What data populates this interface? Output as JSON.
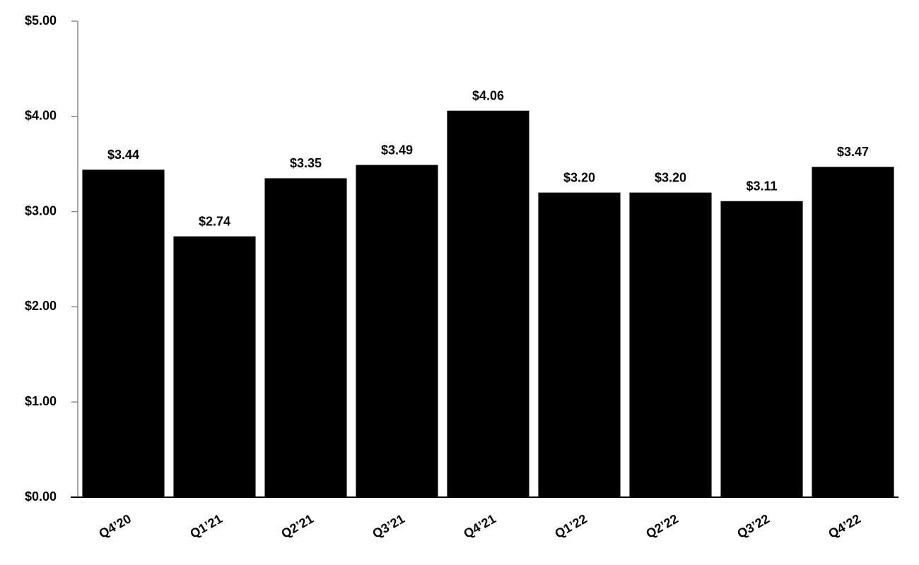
{
  "chart_data": {
    "type": "bar",
    "categories": [
      "Q4’20",
      "Q1’21",
      "Q2’21",
      "Q3’21",
      "Q4’21",
      "Q1’22",
      "Q2’22",
      "Q3’22",
      "Q4’22"
    ],
    "values": [
      3.44,
      2.74,
      3.35,
      3.49,
      4.06,
      3.2,
      3.2,
      3.11,
      3.47
    ],
    "value_labels": [
      "$3.44",
      "$2.74",
      "$3.35",
      "$3.49",
      "$4.06",
      "$3.20",
      "$3.20",
      "$3.11",
      "$3.47"
    ],
    "color": "#000000",
    "ylim": [
      0,
      5
    ],
    "yticks": [
      {
        "value": 0,
        "label": "$0.00"
      },
      {
        "value": 1,
        "label": "$1.00"
      },
      {
        "value": 2,
        "label": "$2.00"
      },
      {
        "value": 3,
        "label": "$3.00"
      },
      {
        "value": 4,
        "label": "$4.00"
      },
      {
        "value": 5,
        "label": "$5.00"
      }
    ],
    "grid": false
  }
}
